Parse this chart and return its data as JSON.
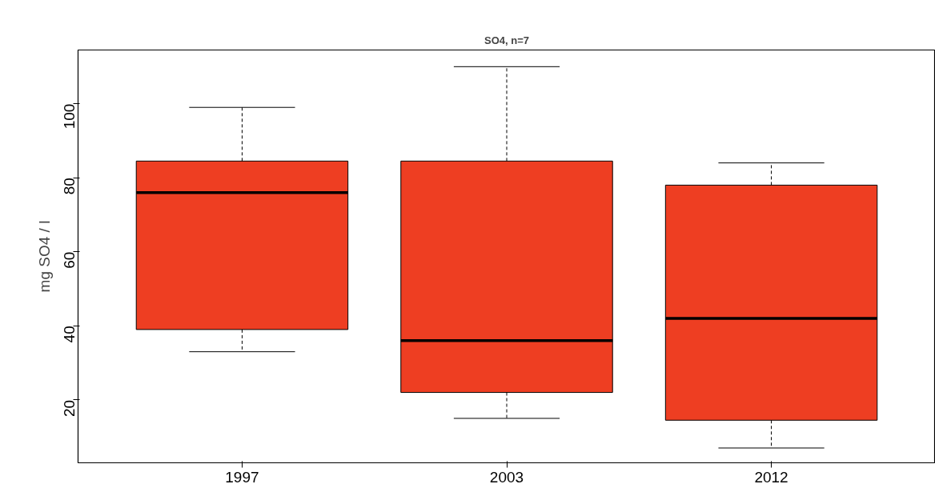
{
  "chart_data": {
    "type": "box",
    "title": "SO4, n=7",
    "ylabel": "mg SO4 / l",
    "categories": [
      "1997",
      "2003",
      "2012"
    ],
    "color": "#ee3e22",
    "boxes": [
      {
        "low": 33,
        "q1": 39,
        "median": 76,
        "q3": 84.5,
        "high": 99
      },
      {
        "low": 15,
        "q1": 22,
        "median": 36,
        "q3": 84.5,
        "high": 110
      },
      {
        "low": 7,
        "q1": 14.5,
        "median": 42,
        "q3": 78,
        "high": 84
      }
    ],
    "ylim": [
      3,
      114.5
    ],
    "yticks": [
      20,
      40,
      60,
      80,
      100
    ],
    "grid": false
  }
}
